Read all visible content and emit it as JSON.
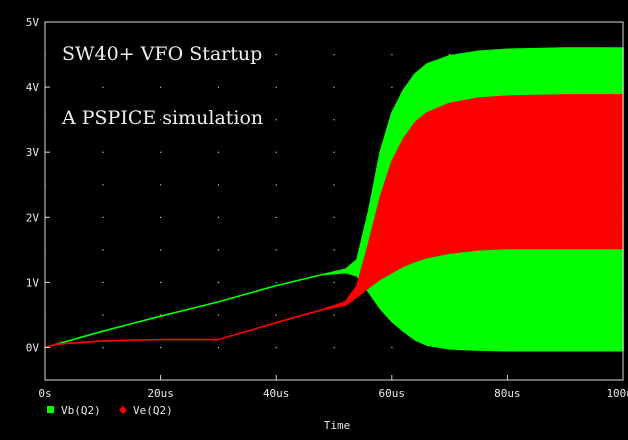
{
  "chart_data": {
    "type": "area",
    "title": "SW40+   VFO Startup",
    "subtitle": "A PSPICE simulation",
    "xlabel": "Time",
    "ylabel": "",
    "xlim": [
      0,
      100
    ],
    "ylim": [
      -0.5,
      5
    ],
    "x_ticks": [
      "0s",
      "20us",
      "40us",
      "60us",
      "80us",
      "100us"
    ],
    "y_ticks": [
      "0V",
      "1V",
      "2V",
      "3V",
      "4V",
      "5V"
    ],
    "grid": "dotted",
    "legend_position": "bottom-left",
    "series": [
      {
        "name": "Vb(Q2)",
        "color": "#00ff00",
        "marker": "square",
        "x": [
          0,
          2,
          10,
          20,
          30,
          40,
          48,
          52,
          54,
          56,
          58,
          60,
          62,
          64,
          66,
          70,
          75,
          80,
          90,
          100
        ],
        "high": [
          0,
          0.05,
          0.25,
          0.48,
          0.7,
          0.95,
          1.12,
          1.2,
          1.35,
          2.1,
          3.0,
          3.6,
          3.95,
          4.2,
          4.35,
          4.48,
          4.55,
          4.58,
          4.6,
          4.6
        ],
        "low": [
          0,
          0.05,
          0.25,
          0.48,
          0.7,
          0.95,
          1.12,
          1.15,
          1.1,
          0.85,
          0.6,
          0.4,
          0.25,
          0.12,
          0.04,
          -0.02,
          -0.04,
          -0.05,
          -0.05,
          -0.05
        ]
      },
      {
        "name": "Ve(Q2)",
        "color": "#ff0000",
        "marker": "diamond",
        "x": [
          0,
          2,
          10,
          20,
          30,
          40,
          48,
          52,
          54,
          56,
          58,
          60,
          62,
          64,
          66,
          70,
          75,
          80,
          90,
          100
        ],
        "high": [
          0,
          0.05,
          0.1,
          0.12,
          0.12,
          0.38,
          0.58,
          0.7,
          0.95,
          1.6,
          2.3,
          2.85,
          3.2,
          3.45,
          3.6,
          3.75,
          3.83,
          3.86,
          3.88,
          3.88
        ],
        "low": [
          0,
          0.05,
          0.1,
          0.12,
          0.12,
          0.38,
          0.58,
          0.65,
          0.78,
          0.92,
          1.05,
          1.15,
          1.25,
          1.32,
          1.38,
          1.45,
          1.5,
          1.52,
          1.52,
          1.52
        ]
      }
    ]
  }
}
